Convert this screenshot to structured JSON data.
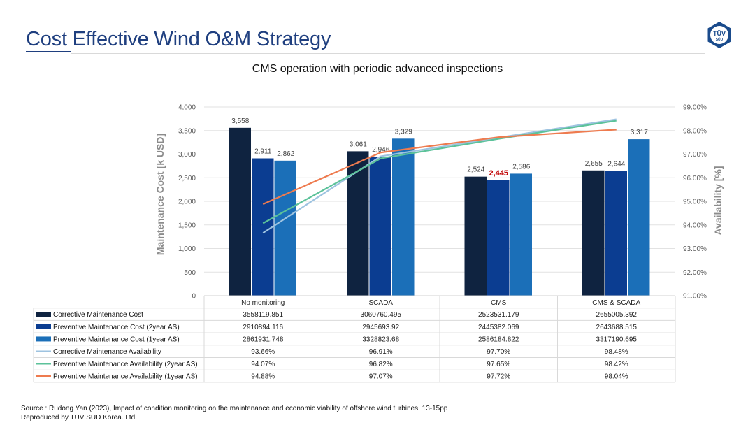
{
  "header": {
    "title": "Cost Effective Wind O&M Strategy",
    "logo_text_top": "TÜV",
    "logo_text_bottom": "SÜD"
  },
  "colors": {
    "title": "#1f3f7f",
    "corrective_cost": "#0f2340",
    "preventive_cost_2y": "#0b3d91",
    "preventive_cost_1y": "#1b6fb8",
    "corrective_availability": "#9ec3e0",
    "preventive_availability_2y": "#5cc29a",
    "preventive_availability_1y": "#ee7b4f",
    "highlight_label": "#c00000"
  },
  "chart_data": {
    "type": "bar",
    "title": "CMS operation with periodic advanced inspections",
    "ylabel": "Maintenance Cost [k USD]",
    "y2label": "Availability [%]",
    "categories": [
      "No monitoring",
      "SCADA",
      "CMS",
      "CMS & SCADA"
    ],
    "ylim": [
      0,
      4000
    ],
    "yticks": [
      "0",
      "500",
      "1,000",
      "1,500",
      "2,000",
      "2,500",
      "3,000",
      "3,500",
      "4,000"
    ],
    "y2lim": [
      91,
      99
    ],
    "y2ticks": [
      "91.00%",
      "92.00%",
      "93.00%",
      "94.00%",
      "95.00%",
      "96.00%",
      "97.00%",
      "98.00%",
      "99.00%"
    ],
    "grid": true,
    "bar_series": [
      {
        "name": "Corrective Maintenance Cost",
        "values": [
          3558.119851,
          3060.760495,
          2523.531179,
          2655.005392
        ],
        "labels": [
          "3,558",
          "3,061",
          "2,524",
          "2,655"
        ],
        "table": [
          "3558119.851",
          "3060760.495",
          "2523531.179",
          "2655005.392"
        ]
      },
      {
        "name": "Preventive Maintenance Cost (2year AS)",
        "values": [
          2910.894116,
          2945.69392,
          2445.382069,
          2643.688515
        ],
        "labels": [
          "2,911",
          "2,946",
          "2,445",
          "2,644"
        ],
        "table": [
          "2910894.116",
          "2945693.92",
          "2445382.069",
          "2643688.515"
        ]
      },
      {
        "name": "Preventive Maintenance Cost (1year AS)",
        "values": [
          2861.931748,
          3328.82368,
          2586.184822,
          3317.190695
        ],
        "labels": [
          "2,862",
          "3,329",
          "2,586",
          "3,317"
        ],
        "table": [
          "2861931.748",
          "3328823.68",
          "2586184.822",
          "3317190.695"
        ]
      }
    ],
    "line_series": [
      {
        "name": "Corrective Maintenance Availability",
        "values": [
          93.66,
          96.91,
          97.7,
          98.48
        ],
        "table": [
          "93.66%",
          "96.91%",
          "97.70%",
          "98.48%"
        ]
      },
      {
        "name": "Preventive Maintenance Availability (2year AS)",
        "values": [
          94.07,
          96.82,
          97.65,
          98.42
        ],
        "table": [
          "94.07%",
          "96.82%",
          "97.65%",
          "98.42%"
        ]
      },
      {
        "name": "Preventive Maintenance Availability (1year AS)",
        "values": [
          94.88,
          97.07,
          97.72,
          98.04
        ],
        "table": [
          "94.88%",
          "97.07%",
          "97.72%",
          "98.04%"
        ]
      }
    ],
    "highlight": {
      "series": 1,
      "category": 2
    }
  },
  "footer": {
    "source_line": "Source : Rudong Yan (2023), Impact of condition monitoring on the maintenance and economic viability of offshore wind turbines, 13-15pp",
    "reproduced_line": "Reproduced by TUV SUD Korea. Ltd."
  }
}
